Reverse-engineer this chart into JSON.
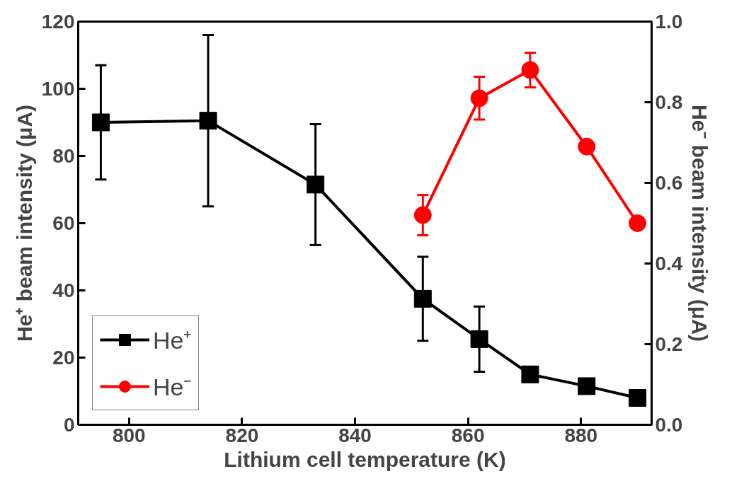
{
  "chart_data": {
    "type": "line",
    "xlabel": "Lithium cell temperature (K)",
    "ylabel": "He⁺ beam intensity (μA)",
    "y2label": "He⁻ beam intensity (μA)",
    "xlim": [
      791,
      892.5
    ],
    "xticks": [
      800,
      820,
      840,
      860,
      880
    ],
    "ylim": [
      0,
      120
    ],
    "yticks": [
      0,
      20,
      40,
      60,
      80,
      100,
      120
    ],
    "y2lim": [
      0,
      1.0
    ],
    "y2ticks": [
      {
        "value": 0,
        "label": "0.0"
      },
      0.2,
      0.4,
      0.6,
      0.8,
      {
        "value": 1.0,
        "label": "1.0"
      }
    ],
    "grid": false,
    "legend": "bottom left",
    "line_style": "solid",
    "series": [
      {
        "name": "He⁺",
        "color": "#000000",
        "marker": "square",
        "x": [
          795,
          814,
          833,
          852,
          862,
          871,
          881,
          890
        ],
        "values": [
          90,
          90.5,
          71.5,
          37.5,
          25.5,
          15,
          11.5,
          8
        ],
        "errors": [
          17,
          25.5,
          18,
          12.5,
          9.7,
          null,
          null,
          null
        ]
      },
      {
        "name": "He⁻",
        "color": "#ff0000",
        "marker": "circle",
        "axis": "y2",
        "x": [
          852,
          862,
          871,
          881,
          890
        ],
        "values": [
          0.52,
          0.81,
          0.88,
          0.69,
          0.5
        ],
        "errors": [
          0.05,
          0.053,
          0.043,
          null,
          null
        ]
      }
    ]
  }
}
